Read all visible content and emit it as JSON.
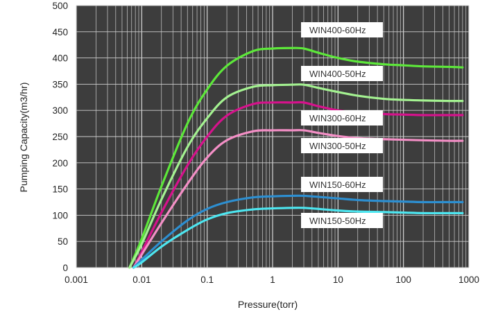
{
  "chart_data": {
    "type": "line",
    "xlabel": "Pressure(torr)",
    "ylabel": "Pumping Capacity(m3/hr)",
    "x_scale": "log",
    "xlim": [
      0.001,
      1000
    ],
    "ylim": [
      0,
      500
    ],
    "x_ticks": [
      0.001,
      0.01,
      0.1,
      1,
      10,
      100,
      1000
    ],
    "x_tick_labels": [
      "0.001",
      "0.01",
      "0.1",
      "1",
      "10",
      "100",
      "1000"
    ],
    "y_ticks": [
      0,
      50,
      100,
      150,
      200,
      250,
      300,
      350,
      400,
      450,
      500
    ],
    "y_tick_labels": [
      "0",
      "50",
      "100",
      "150",
      "200",
      "250",
      "300",
      "350",
      "400",
      "450",
      "500"
    ],
    "grid": true,
    "background_color": "#3d3d3d",
    "series": [
      {
        "name": "WIN400-60Hz",
        "color": "#5de83a",
        "x": [
          0.0065,
          0.01,
          0.02,
          0.05,
          0.1,
          0.2,
          0.5,
          1,
          2,
          3,
          5,
          10,
          20,
          50,
          100,
          200,
          500,
          800
        ],
        "y": [
          0,
          55,
          155,
          275,
          340,
          385,
          413,
          418,
          419,
          418,
          410,
          400,
          393,
          388,
          386,
          384,
          383,
          382
        ]
      },
      {
        "name": "WIN400-50Hz",
        "color": "#a4f291",
        "x": [
          0.0065,
          0.01,
          0.02,
          0.05,
          0.1,
          0.2,
          0.5,
          1,
          2,
          3,
          5,
          10,
          20,
          50,
          100,
          200,
          500,
          800
        ],
        "y": [
          0,
          45,
          130,
          230,
          285,
          325,
          345,
          348,
          349,
          349,
          343,
          335,
          328,
          322,
          320,
          319,
          318,
          318
        ]
      },
      {
        "name": "WIN300-60Hz",
        "color": "#d6128c",
        "x": [
          0.0075,
          0.01,
          0.02,
          0.05,
          0.1,
          0.2,
          0.5,
          1,
          2,
          3,
          5,
          10,
          20,
          50,
          100,
          200,
          500,
          800
        ],
        "y": [
          0,
          30,
          105,
          195,
          250,
          290,
          312,
          315,
          315,
          315,
          308,
          300,
          296,
          293,
          292,
          291,
          291,
          291
        ]
      },
      {
        "name": "WIN300-50Hz",
        "color": "#f48fc6",
        "x": [
          0.0075,
          0.01,
          0.02,
          0.05,
          0.1,
          0.2,
          0.5,
          1,
          2,
          3,
          5,
          10,
          20,
          50,
          100,
          200,
          500,
          800
        ],
        "y": [
          0,
          25,
          85,
          160,
          210,
          243,
          260,
          262,
          262,
          262,
          257,
          251,
          247,
          245,
          244,
          243,
          242,
          242
        ]
      },
      {
        "name": "WIN150-60Hz",
        "color": "#2d8fd1",
        "x": [
          0.0075,
          0.01,
          0.02,
          0.05,
          0.1,
          0.2,
          0.5,
          1,
          2,
          3,
          5,
          10,
          20,
          50,
          100,
          200,
          500,
          800
        ],
        "y": [
          0,
          15,
          50,
          90,
          112,
          125,
          134,
          136,
          137,
          137,
          135,
          132,
          129,
          127,
          126,
          125,
          125,
          125
        ]
      },
      {
        "name": "WIN150-50Hz",
        "color": "#4de6f0",
        "x": [
          0.0075,
          0.01,
          0.02,
          0.05,
          0.1,
          0.2,
          0.5,
          1,
          2,
          3,
          5,
          10,
          20,
          50,
          100,
          200,
          500,
          800
        ],
        "y": [
          0,
          10,
          40,
          72,
          92,
          104,
          111,
          113,
          114,
          114,
          112,
          109,
          107,
          106,
          105,
          104,
          104,
          104
        ]
      }
    ],
    "legend": {
      "placement": "right, inline labels",
      "items": [
        "WIN400-60Hz",
        "WIN400-50Hz",
        "WIN300-60Hz",
        "WIN300-50Hz",
        "WIN150-60Hz",
        "WIN150-50Hz"
      ]
    }
  }
}
